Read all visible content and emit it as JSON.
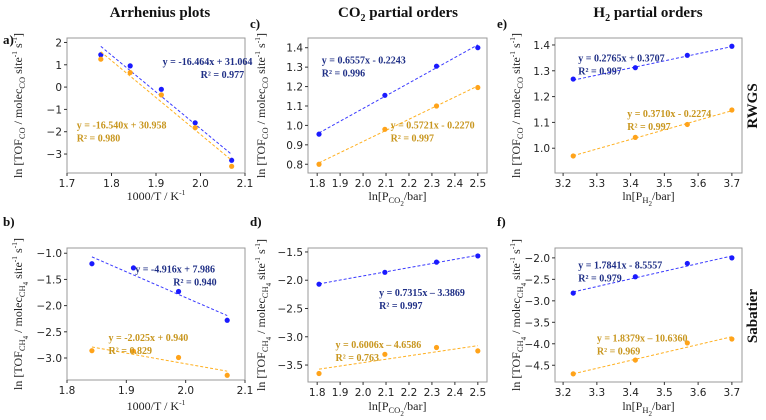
{
  "column_titles": [
    {
      "pre": "Arrhenius plots",
      "sub": "",
      "post": ""
    },
    {
      "pre": "CO",
      "sub": "2",
      "post": " partial orders"
    },
    {
      "pre": "H",
      "sub": "2",
      "post": " partial orders"
    }
  ],
  "row_labels": [
    "RWGS",
    "Sabatier"
  ],
  "colors": {
    "blue_point": "#1a1aff",
    "blue_line": "#3a3aff",
    "blue_text": "#1f2f86",
    "orange_point": "#ffa31a",
    "orange_line": "#ffb020",
    "orange_text": "#c8961e",
    "frame": "#999999"
  },
  "chart_data": [
    {
      "id": "a",
      "panel_label": "a)",
      "type": "scatter",
      "xlabel": [
        {
          "t": "1000/T   / K",
          "s": ""
        },
        {
          "t": "-1",
          "s": "sup"
        }
      ],
      "ylabel": [
        {
          "t": "ln [TOF",
          "s": ""
        },
        {
          "t": "CO",
          "s": "sub"
        },
        {
          "t": " / molec",
          "s": ""
        },
        {
          "t": "CO",
          "s": "sub"
        },
        {
          "t": " site",
          "s": ""
        },
        {
          "t": "-1",
          "s": "sup"
        },
        {
          "t": " s",
          "s": ""
        },
        {
          "t": "-1",
          "s": "sup"
        },
        {
          "t": "]",
          "s": ""
        }
      ],
      "xlim": [
        1.7,
        2.1
      ],
      "ylim": [
        -3.85,
        2.2
      ],
      "xticks": [
        "1.7",
        "1.8",
        "1.9",
        "2.0",
        "2.1"
      ],
      "yticks": [
        "−3",
        "−2",
        "−1",
        "0",
        "1",
        "2"
      ],
      "series": [
        {
          "name": "blue",
          "x": [
            1.776,
            1.842,
            1.912,
            1.988,
            2.07
          ],
          "y": [
            1.45,
            0.95,
            -0.1,
            -1.6,
            -3.28
          ],
          "fit": {
            "slope": -16.464,
            "intercept": 31.064
          },
          "equation": "y = -16.464x + 31.064",
          "r2": "R² = 0.977"
        },
        {
          "name": "orange",
          "x": [
            1.776,
            1.842,
            1.912,
            1.988,
            2.07
          ],
          "y": [
            1.25,
            0.65,
            -0.35,
            -1.82,
            -3.55
          ],
          "fit": {
            "slope": -16.54,
            "intercept": 30.958
          },
          "equation": "y = -16.540x + 30.958",
          "r2": "R² = 0.980"
        }
      ]
    },
    {
      "id": "b",
      "panel_label": "b)",
      "type": "scatter",
      "xlabel": [
        {
          "t": "1000/T   / K",
          "s": ""
        },
        {
          "t": "-1",
          "s": "sup"
        }
      ],
      "ylabel": [
        {
          "t": "ln [TOF",
          "s": ""
        },
        {
          "t": "CH",
          "s": "sub"
        },
        {
          "t": "4",
          "s": "sub2"
        },
        {
          "t": " / molec",
          "s": ""
        },
        {
          "t": "CH",
          "s": "sub"
        },
        {
          "t": "4",
          "s": "sub2"
        },
        {
          "t": " site",
          "s": ""
        },
        {
          "t": "-1",
          "s": "sup"
        },
        {
          "t": " s",
          "s": ""
        },
        {
          "t": "-1",
          "s": "sup"
        },
        {
          "t": "]",
          "s": ""
        }
      ],
      "xlim": [
        1.8,
        2.1
      ],
      "ylim": [
        -3.42,
        -0.9
      ],
      "xticks": [
        "1.8",
        "1.9",
        "2.0",
        "2.1"
      ],
      "yticks": [
        "−3.0",
        "−2.5",
        "−2.0",
        "−1.5",
        "−1.0"
      ],
      "series": [
        {
          "name": "blue",
          "x": [
            1.842,
            1.912,
            1.988,
            2.07
          ],
          "y": [
            -1.2,
            -1.28,
            -1.73,
            -2.28
          ],
          "fit": {
            "slope": -4.916,
            "intercept": 7.986
          },
          "equation": "y = -4.916x + 7.986",
          "r2": "R² = 0.940"
        },
        {
          "name": "orange",
          "x": [
            1.842,
            1.912,
            1.988,
            2.07
          ],
          "y": [
            -2.86,
            -2.87,
            -2.99,
            -3.33
          ],
          "fit": {
            "slope": -2.025,
            "intercept": 0.94
          },
          "equation": "y = -2.025x + 0.940",
          "r2": "R² = 0.829"
        }
      ]
    },
    {
      "id": "c",
      "panel_label": "c)",
      "type": "scatter",
      "xlabel": [
        {
          "t": "ln[P",
          "s": ""
        },
        {
          "t": "CO",
          "s": "sub"
        },
        {
          "t": "2",
          "s": "sub2"
        },
        {
          "t": "/bar]",
          "s": ""
        }
      ],
      "ylabel": [
        {
          "t": "ln [TOF",
          "s": ""
        },
        {
          "t": "CO",
          "s": "sub"
        },
        {
          "t": " / molec",
          "s": ""
        },
        {
          "t": "CO",
          "s": "sub"
        },
        {
          "t": " site",
          "s": ""
        },
        {
          "t": "-1",
          "s": "sup"
        },
        {
          "t": " s",
          "s": ""
        },
        {
          "t": "-1",
          "s": "sup"
        },
        {
          "t": "]",
          "s": ""
        }
      ],
      "xlim": [
        1.76,
        2.54
      ],
      "ylim": [
        0.755,
        1.45
      ],
      "xticks": [
        "1.8",
        "1.9",
        "2.0",
        "2.1",
        "2.2",
        "2.3",
        "2.4",
        "2.5"
      ],
      "yticks": [
        "0.8",
        "0.9",
        "1.0",
        "1.1",
        "1.2",
        "1.3",
        "1.4"
      ],
      "series": [
        {
          "name": "blue",
          "x": [
            1.808,
            2.095,
            2.32,
            2.5
          ],
          "y": [
            0.955,
            1.155,
            1.305,
            1.4
          ],
          "fit": {
            "slope": 0.6557,
            "intercept": -0.2243
          },
          "equation": "y = 0.6557x - 0.2243",
          "r2": "R² = 0.996"
        },
        {
          "name": "orange",
          "x": [
            1.808,
            2.095,
            2.32,
            2.5
          ],
          "y": [
            0.8,
            0.98,
            1.1,
            1.195
          ],
          "fit": {
            "slope": 0.5721,
            "intercept": -0.227
          },
          "equation": "y = 0.5721x - 0.2270",
          "r2": "R² = 0.997"
        }
      ]
    },
    {
      "id": "d",
      "panel_label": "d)",
      "type": "scatter",
      "xlabel": [
        {
          "t": "ln[P",
          "s": ""
        },
        {
          "t": "CO",
          "s": "sub"
        },
        {
          "t": "2",
          "s": "sub2"
        },
        {
          "t": "/bar]",
          "s": ""
        }
      ],
      "ylabel": [
        {
          "t": "ln [TOF",
          "s": ""
        },
        {
          "t": "CH",
          "s": "sub"
        },
        {
          "t": "4",
          "s": "sub2"
        },
        {
          "t": " / molec",
          "s": ""
        },
        {
          "t": "CH",
          "s": "sub"
        },
        {
          "t": "4",
          "s": "sub2"
        },
        {
          "t": " site",
          "s": ""
        },
        {
          "t": "-1",
          "s": "sup"
        },
        {
          "t": " s",
          "s": ""
        },
        {
          "t": "-1",
          "s": "sup"
        },
        {
          "t": "]",
          "s": ""
        }
      ],
      "xlim": [
        1.76,
        2.54
      ],
      "ylim": [
        -3.8,
        -1.43
      ],
      "xticks": [
        "1.8",
        "1.9",
        "2.0",
        "2.1",
        "2.2",
        "2.3",
        "2.4",
        "2.5"
      ],
      "yticks": [
        "−3.5",
        "−3.0",
        "−2.5",
        "−2.0",
        "−1.5"
      ],
      "series": [
        {
          "name": "blue",
          "x": [
            1.808,
            2.095,
            2.32,
            2.5
          ],
          "y": [
            -2.07,
            -1.86,
            -1.68,
            -1.57
          ],
          "fit": {
            "slope": 0.7315,
            "intercept": -3.3869
          },
          "equation": "y = 0.7315x – 3.3869",
          "r2": "R² = 0.997"
        },
        {
          "name": "orange",
          "x": [
            1.808,
            2.095,
            2.32,
            2.5
          ],
          "y": [
            -3.65,
            -3.31,
            -3.19,
            -3.25
          ],
          "fit": {
            "slope": 0.6006,
            "intercept": -4.6586
          },
          "equation": "y = 0.6006x – 4.6586",
          "r2": "R² = 0.763"
        }
      ]
    },
    {
      "id": "e",
      "panel_label": "e)",
      "type": "scatter",
      "xlabel": [
        {
          "t": "ln[P",
          "s": ""
        },
        {
          "t": "H",
          "s": "sub"
        },
        {
          "t": "2",
          "s": "sub2"
        },
        {
          "t": "/bar]",
          "s": ""
        }
      ],
      "ylabel": [
        {
          "t": "ln [TOF",
          "s": ""
        },
        {
          "t": "CO",
          "s": "sub"
        },
        {
          "t": " / molec",
          "s": ""
        },
        {
          "t": "CO",
          "s": "sub"
        },
        {
          "t": " site",
          "s": ""
        },
        {
          "t": "-1",
          "s": "sup"
        },
        {
          "t": " s",
          "s": ""
        },
        {
          "t": "-1",
          "s": "sup"
        },
        {
          "t": "]",
          "s": ""
        }
      ],
      "xlim": [
        3.176,
        3.73
      ],
      "ylim": [
        0.904,
        1.427
      ],
      "xticks": [
        "3.2",
        "3.3",
        "3.4",
        "3.5",
        "3.6",
        "3.7"
      ],
      "yticks": [
        "1.0",
        "1.1",
        "1.2",
        "1.3",
        "1.4"
      ],
      "series": [
        {
          "name": "blue",
          "x": [
            3.23,
            3.414,
            3.568,
            3.7
          ],
          "y": [
            1.268,
            1.312,
            1.36,
            1.395
          ],
          "fit": {
            "slope": 0.2765,
            "intercept": 0.3707
          },
          "equation": "y = 0.2765x + 0.3707",
          "r2": "R² = 0.997"
        },
        {
          "name": "orange",
          "x": [
            3.23,
            3.414,
            3.568,
            3.7
          ],
          "y": [
            0.97,
            1.042,
            1.092,
            1.148
          ],
          "fit": {
            "slope": 0.371,
            "intercept": -0.2274
          },
          "equation": "y = 0.3710x - 0.2274",
          "r2": "R² = 0.997"
        }
      ]
    },
    {
      "id": "f",
      "panel_label": "f)",
      "type": "scatter",
      "xlabel": [
        {
          "t": "ln[P",
          "s": ""
        },
        {
          "t": "H",
          "s": "sub"
        },
        {
          "t": "2",
          "s": "sub2"
        },
        {
          "t": "/bar]",
          "s": ""
        }
      ],
      "ylabel": [
        {
          "t": "ln [TOF",
          "s": ""
        },
        {
          "t": "CH",
          "s": "sub"
        },
        {
          "t": "4",
          "s": "sub2"
        },
        {
          "t": " / molec",
          "s": ""
        },
        {
          "t": "CH",
          "s": "sub"
        },
        {
          "t": "4",
          "s": "sub2"
        },
        {
          "t": " site",
          "s": ""
        },
        {
          "t": "-1",
          "s": "sup"
        },
        {
          "t": " s",
          "s": ""
        },
        {
          "t": "-1",
          "s": "sup"
        },
        {
          "t": "]",
          "s": ""
        }
      ],
      "xlim": [
        3.176,
        3.73
      ],
      "ylim": [
        -4.89,
        -1.77
      ],
      "xticks": [
        "3.2",
        "3.3",
        "3.4",
        "3.5",
        "3.6",
        "3.7"
      ],
      "yticks": [
        "−4.5",
        "−4.0",
        "−3.5",
        "−3.0",
        "−2.5",
        "−2.0"
      ],
      "series": [
        {
          "name": "blue",
          "x": [
            3.23,
            3.414,
            3.568,
            3.7
          ],
          "y": [
            -2.82,
            -2.44,
            -2.13,
            -2.0
          ],
          "fit": {
            "slope": 1.7841,
            "intercept": -8.5557
          },
          "equation": "y = 1.7841x - 8.5557",
          "r2": "R² = 0.979"
        },
        {
          "name": "orange",
          "x": [
            3.23,
            3.414,
            3.568,
            3.7
          ],
          "y": [
            -4.7,
            -4.38,
            -3.98,
            -3.89
          ],
          "fit": {
            "slope": 1.8379,
            "intercept": -10.636
          },
          "equation": "y = 1.8379x – 10.6360",
          "r2": "R² = 0.969"
        }
      ]
    }
  ]
}
